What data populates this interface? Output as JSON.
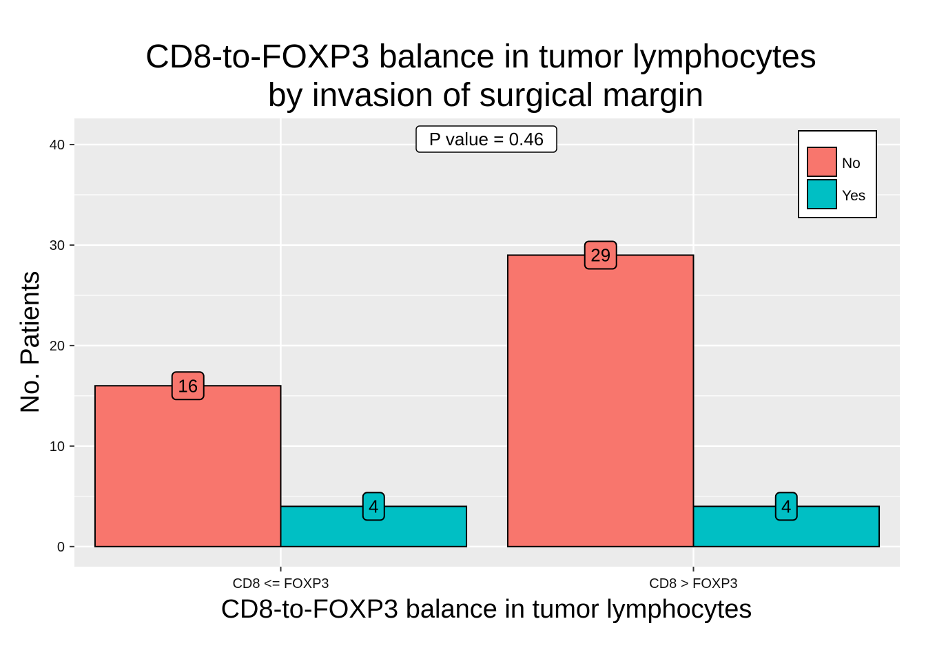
{
  "chart_data": {
    "type": "bar",
    "title_lines": [
      "CD8-to-FOXP3 balance in tumor lymphocytes",
      "by invasion of surgical margin"
    ],
    "xlabel": "CD8-to-FOXP3 balance in tumor lymphocytes",
    "ylabel": "No. Patients",
    "categories": [
      "CD8 <= FOXP3",
      "CD8 > FOXP3"
    ],
    "series": [
      {
        "name": "No",
        "values": [
          16,
          29
        ],
        "color": "#F8766D"
      },
      {
        "name": "Yes",
        "values": [
          4,
          4
        ],
        "color": "#00BFC4"
      }
    ],
    "ylim": [
      -2,
      42.6
    ],
    "yticks": [
      0,
      10,
      20,
      30,
      40
    ],
    "annotation": "P value = 0.46",
    "legend_position": "top-right",
    "grid": true,
    "panel_background": "#EBEBEB"
  }
}
